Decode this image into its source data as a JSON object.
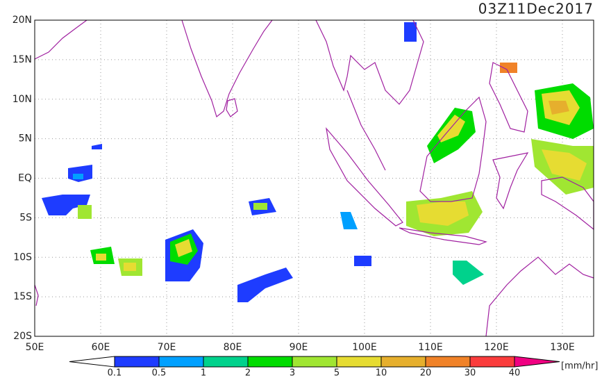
{
  "map": {
    "title": "03Z11Dec2017",
    "lon_range": [
      50,
      135
    ],
    "lat_range": [
      -20,
      20
    ],
    "lon_ticks": [
      {
        "value": 50,
        "label": "50E"
      },
      {
        "value": 60,
        "label": "60E"
      },
      {
        "value": 70,
        "label": "70E"
      },
      {
        "value": 80,
        "label": "80E"
      },
      {
        "value": 90,
        "label": "90E"
      },
      {
        "value": 100,
        "label": "100E"
      },
      {
        "value": 110,
        "label": "110E"
      },
      {
        "value": 120,
        "label": "120E"
      },
      {
        "value": 130,
        "label": "130E"
      }
    ],
    "lat_ticks": [
      {
        "value": 20,
        "label": "20N"
      },
      {
        "value": 15,
        "label": "15N"
      },
      {
        "value": 10,
        "label": "10N"
      },
      {
        "value": 5,
        "label": "5N"
      },
      {
        "value": 0,
        "label": "EQ"
      },
      {
        "value": -5,
        "label": "5S"
      },
      {
        "value": -10,
        "label": "10S"
      },
      {
        "value": -15,
        "label": "15S"
      },
      {
        "value": -20,
        "label": "20S"
      }
    ],
    "colorbar": {
      "levels": [
        0.1,
        0.5,
        1,
        2,
        3,
        5,
        10,
        20,
        30,
        40
      ],
      "colors": [
        "#ffffff",
        "#1e3cff",
        "#00a0ff",
        "#00d28c",
        "#00dc00",
        "#a0e632",
        "#e6dc32",
        "#e6af2d",
        "#f08228",
        "#fa3c3c",
        "#f00082"
      ],
      "unit": "[mm/hr]"
    }
  }
}
